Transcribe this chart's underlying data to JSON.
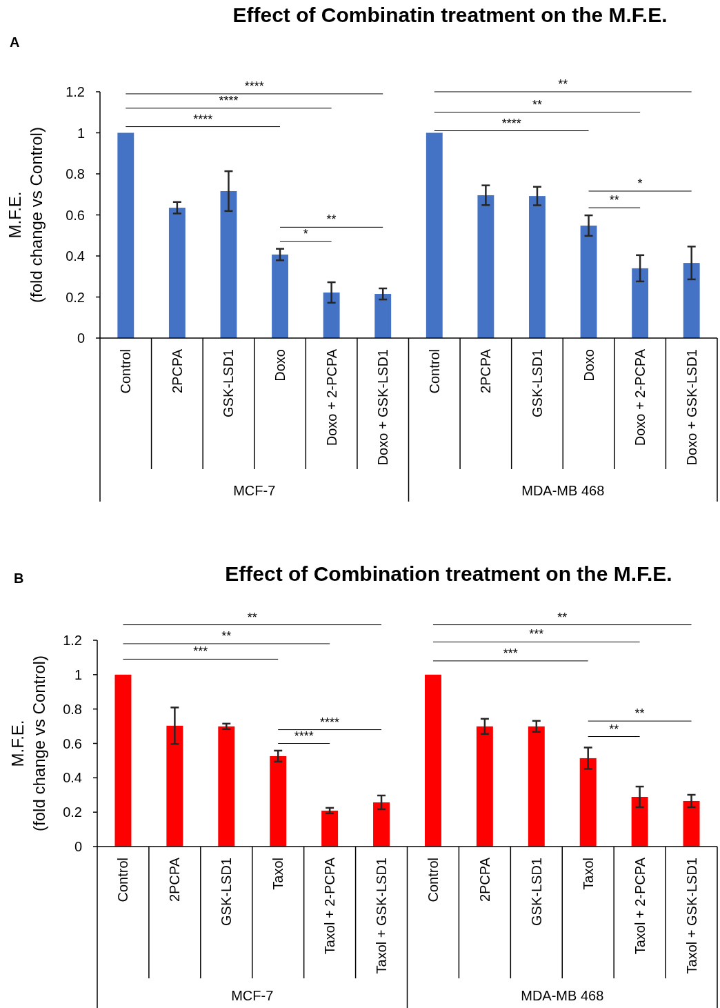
{
  "chart_data": [
    {
      "type": "bar",
      "title": "Effect of Combinatin treatment on the M.F.E.",
      "ylabel": "M.F.E.\n(fold change vs Control)",
      "categories": [
        "Control",
        "2PCPA",
        "GSK-LSD1",
        "Doxo",
        "Doxo + 2-PCPA",
        "Doxo + GSK-LSD1",
        "Control",
        "2PCPA",
        "GSK-LSD1",
        "Doxo",
        "Doxo + 2-PCPA",
        "Doxo + GSK-LSD1"
      ],
      "values": [
        1.0,
        0.635,
        0.716,
        0.407,
        0.222,
        0.215,
        1.0,
        0.696,
        0.692,
        0.548,
        0.34,
        0.366
      ],
      "errors": [
        null,
        0.028,
        0.097,
        0.028,
        0.05,
        0.027,
        null,
        0.048,
        0.045,
        0.05,
        0.064,
        0.08
      ],
      "color": "#4472c4",
      "ylim": [
        0,
        1.2
      ],
      "yticks": [
        0,
        0.2,
        0.4,
        0.6,
        0.8,
        1,
        1.2
      ],
      "grid": false,
      "annotations": [
        "A",
        "MCF-7",
        "MDA-MB 468",
        "****",
        "****",
        "****",
        "*",
        "**",
        "****",
        "**",
        "**",
        "**",
        "*"
      ]
    },
    {
      "type": "bar",
      "title": "Effect of Combination treatment on the M.F.E.",
      "ylabel": "M.F.E.\n(fold change vs Control)",
      "categories": [
        "Control",
        "2PCPA",
        "GSK-LSD1",
        "Taxol",
        "Taxol + 2-PCPA",
        "Taxol + GSK-LSD1",
        "Control",
        "2PCPA",
        "GSK-LSD1",
        "Taxol",
        "Taxol + 2-PCPA",
        "Taxol + GSK-LSD1"
      ],
      "values": [
        1.0,
        0.703,
        0.699,
        0.526,
        0.209,
        0.257,
        1.0,
        0.699,
        0.699,
        0.514,
        0.289,
        0.265
      ],
      "errors": [
        null,
        0.106,
        0.016,
        0.032,
        0.016,
        0.04,
        null,
        0.044,
        0.032,
        0.062,
        0.06,
        0.036
      ],
      "color": "#ff0000",
      "ylim": [
        0,
        1.2
      ],
      "yticks": [
        0,
        0.2,
        0.4,
        0.6,
        0.8,
        1,
        1.2
      ],
      "grid": false,
      "annotations": [
        "B",
        "MCF-7",
        "MDA-MB 468",
        "***",
        "**",
        "**",
        "****",
        "****",
        "***",
        "***",
        "**",
        "**",
        "**"
      ]
    }
  ]
}
